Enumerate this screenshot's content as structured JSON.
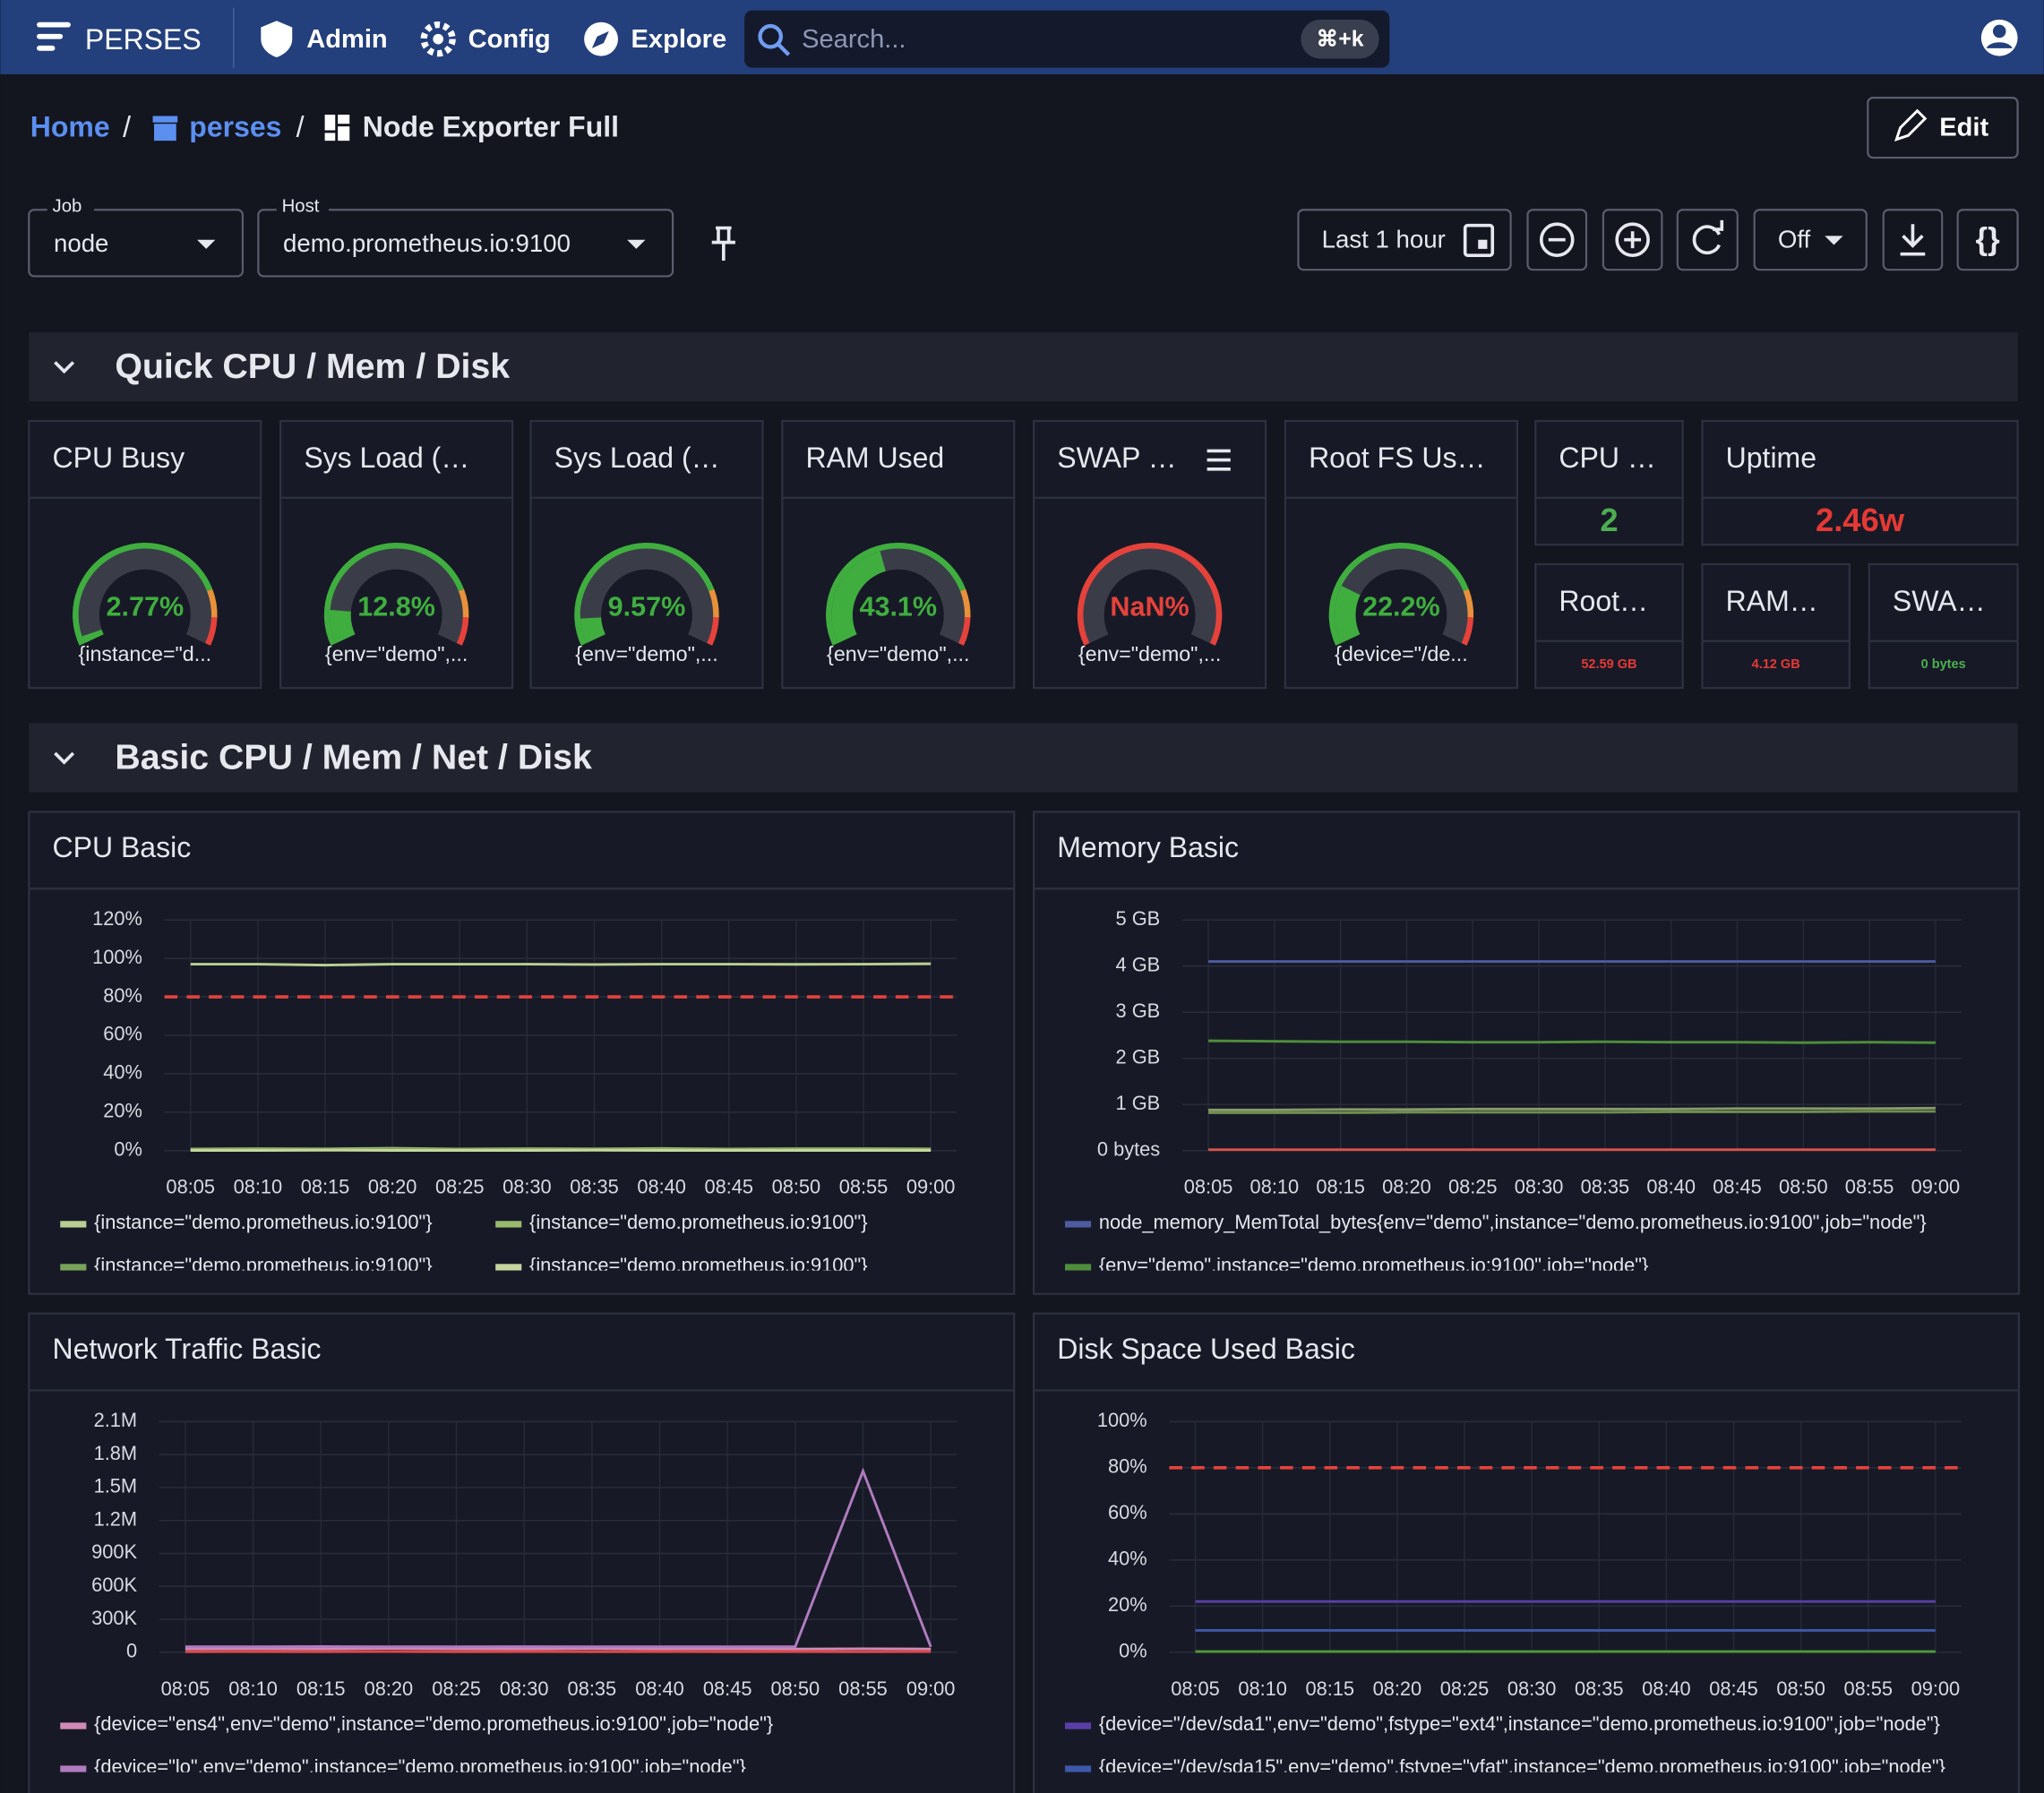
{
  "topbar": {
    "brand": "PERSES",
    "nav": [
      "Admin",
      "Config",
      "Explore"
    ],
    "search": "Search...",
    "shortcut": "⌘+k"
  },
  "breadcrumb": [
    "Home",
    "perses",
    "Node Exporter Full"
  ],
  "edit": "Edit",
  "variables": [
    {
      "label": "Job",
      "value": "node"
    },
    {
      "label": "Host",
      "value": "demo.prometheus.io:9100"
    }
  ],
  "time_range": "Last 1 hour",
  "refresh": "Off",
  "sections": [
    {
      "title": "Quick CPU / Mem / Disk",
      "gauges": [
        {
          "title": "CPU Busy",
          "value": 2.77,
          "value_label": "2.77%",
          "legend": "{instance=\"d...",
          "color": "#3fae3f"
        },
        {
          "title": "Sys Load (…",
          "value": 12.8,
          "value_label": "12.8%",
          "legend": "{env=\"demo\",...",
          "color": "#3fae3f"
        },
        {
          "title": "Sys Load (…",
          "value": 9.57,
          "value_label": "9.57%",
          "legend": "{env=\"demo\",...",
          "color": "#3fae3f"
        },
        {
          "title": "RAM Used",
          "value": 43.1,
          "value_label": "43.1%",
          "legend": "{env=\"demo\",...",
          "color": "#3fae3f"
        },
        {
          "title": "SWAP …",
          "value": null,
          "value_label": "NaN%",
          "legend": "{env=\"demo\",...",
          "color": "#e5423b"
        },
        {
          "title": "Root FS Us…",
          "value": 22.2,
          "value_label": "22.2%",
          "legend": "{device=\"/de...",
          "color": "#3fae3f"
        }
      ],
      "stats": [
        {
          "title": "CPU …",
          "value": "2",
          "color": "#4caf50"
        },
        {
          "title": "Uptime",
          "value": "2.46w",
          "color": "#e53935"
        },
        {
          "title": "Root…",
          "value": "52.59 GB",
          "color": "#e53935"
        },
        {
          "title": "RAM…",
          "value": "4.12 GB",
          "color": "#e53935"
        },
        {
          "title": "SWA…",
          "value": "0 bytes",
          "color": "#4caf50"
        }
      ]
    },
    {
      "title": "Basic CPU / Mem / Net / Disk",
      "charts": [
        {
          "title": "CPU Basic",
          "ylim": [
            0,
            120
          ],
          "yticks": [
            {
              "value": 0,
              "label": "0%"
            },
            {
              "value": 20,
              "label": "20%"
            },
            {
              "value": 40,
              "label": "40%"
            },
            {
              "value": 60,
              "label": "60%"
            },
            {
              "value": 80,
              "label": "80%"
            },
            {
              "value": 100,
              "label": "100%"
            },
            {
              "value": 120,
              "label": "120%"
            }
          ],
          "categories": [
            "08:05",
            "08:10",
            "08:15",
            "08:20",
            "08:25",
            "08:30",
            "08:35",
            "08:40",
            "08:45",
            "08:50",
            "08:55",
            "09:00"
          ],
          "thresholds": [
            80
          ],
          "series": [
            {
              "name": "{instance=\"demo.prometheus.io:9100\"}",
              "color": "#b9cf92",
              "values": [
                97,
                97,
                96.5,
                97,
                97,
                97,
                96.8,
                97,
                97,
                96.9,
                97,
                97.2
              ]
            },
            {
              "name": "{instance=\"demo.prometheus.io:9100\"}",
              "color": "#9ab86e",
              "values": [
                0.8,
                1,
                0.9,
                1.2,
                0.8,
                1,
                0.9,
                1.1,
                0.8,
                1,
                1,
                0.9
              ]
            },
            {
              "name": "{instance=\"demo.prometheus.io:9100\"}",
              "color": "#7aa35a",
              "values": [
                0.3,
                0.4,
                0.3,
                0.5,
                0.3,
                0.4,
                0.3,
                0.4,
                0.3,
                0.4,
                0.4,
                0.3
              ]
            },
            {
              "name": "{instance=\"demo.prometheus.io:9100\"}",
              "color": "#c6d69e",
              "values": [
                0.1,
                0.1,
                0.2,
                0.1,
                0.1,
                0.1,
                0.2,
                0.1,
                0.1,
                0.1,
                0.1,
                0.1
              ]
            }
          ]
        },
        {
          "title": "Memory Basic",
          "ylim": [
            0,
            5
          ],
          "yticks": [
            {
              "value": 0,
              "label": "0 bytes"
            },
            {
              "value": 1,
              "label": "1 GB"
            },
            {
              "value": 2,
              "label": "2 GB"
            },
            {
              "value": 3,
              "label": "3 GB"
            },
            {
              "value": 4,
              "label": "4 GB"
            },
            {
              "value": 5,
              "label": "5 GB"
            }
          ],
          "categories": [
            "08:05",
            "08:10",
            "08:15",
            "08:20",
            "08:25",
            "08:30",
            "08:35",
            "08:40",
            "08:45",
            "08:50",
            "08:55",
            "09:00"
          ],
          "series": [
            {
              "name": "node_memory_MemTotal_bytes{env=\"demo\",instance=\"demo.prometheus.io:9100\",job=\"node\"}",
              "color": "#4e5ba0",
              "values": [
                4.1,
                4.1,
                4.1,
                4.1,
                4.1,
                4.1,
                4.1,
                4.1,
                4.1,
                4.1,
                4.1,
                4.1
              ]
            },
            {
              "name": "{env=\"demo\",instance=\"demo.prometheus.io:9100\",job=\"node\"}",
              "color": "#4f8f3c",
              "values": [
                2.38,
                2.37,
                2.36,
                2.36,
                2.35,
                2.35,
                2.36,
                2.35,
                2.35,
                2.34,
                2.35,
                2.34
              ]
            },
            {
              "color": "#8a9a6a",
              "values": [
                0.88,
                0.88,
                0.89,
                0.89,
                0.9,
                0.9,
                0.9,
                0.9,
                0.91,
                0.91,
                0.91,
                0.92
              ]
            },
            {
              "color": "#6f8f4f",
              "values": [
                0.82,
                0.82,
                0.82,
                0.83,
                0.83,
                0.83,
                0.83,
                0.84,
                0.84,
                0.84,
                0.85,
                0.85
              ]
            },
            {
              "color": "#d9534f",
              "values": [
                0.02,
                0.02,
                0.02,
                0.02,
                0.02,
                0.02,
                0.02,
                0.02,
                0.02,
                0.02,
                0.02,
                0.02
              ]
            }
          ]
        },
        {
          "title": "Network Traffic Basic",
          "ylim": [
            0,
            2100000
          ],
          "yticks": [
            0,
            {
              "value": 300000,
              "label": "300K"
            },
            {
              "value": 600000,
              "label": "600K"
            },
            {
              "value": 900000,
              "label": "900K"
            },
            {
              "value": 1200000,
              "label": "1.2M"
            },
            {
              "value": 1500000,
              "label": "1.5M"
            },
            {
              "value": 1800000,
              "label": "1.8M"
            },
            {
              "value": 2100000,
              "label": "2.1M"
            }
          ],
          "categories": [
            "08:05",
            "08:10",
            "08:15",
            "08:20",
            "08:25",
            "08:30",
            "08:35",
            "08:40",
            "08:45",
            "08:50",
            "08:55",
            "09:00"
          ],
          "series": [
            {
              "name": "{device=\"ens4\",env=\"demo\",instance=\"demo.prometheus.io:9100\",job=\"node\"}",
              "color": "#d08ab5",
              "values": [
                30000,
                32000,
                30000,
                35000,
                31000,
                30000,
                33000,
                30000,
                31000,
                30000,
                32000,
                30000
              ]
            },
            {
              "name": "{device=\"lo\",env=\"demo\",instance=\"demo.prometheus.io:9100\",job=\"node\"}",
              "color": "#b07cc0",
              "values": [
                50000,
                50000,
                52000,
                50000,
                50000,
                51000,
                50000,
                50000,
                50000,
                50000,
                1650000,
                50000
              ]
            },
            {
              "color": "#e04848",
              "values": [
                5000,
                6000,
                5000,
                7000,
                5000,
                6000,
                5000,
                6000,
                5000,
                6000,
                5000,
                6000
              ]
            }
          ]
        },
        {
          "title": "Disk Space Used Basic",
          "ylim": [
            0,
            100
          ],
          "yticks": [
            {
              "value": 0,
              "label": "0%"
            },
            {
              "value": 20,
              "label": "20%"
            },
            {
              "value": 40,
              "label": "40%"
            },
            {
              "value": 60,
              "label": "60%"
            },
            {
              "value": 80,
              "label": "80%"
            },
            {
              "value": 100,
              "label": "100%"
            }
          ],
          "categories": [
            "08:05",
            "08:10",
            "08:15",
            "08:20",
            "08:25",
            "08:30",
            "08:35",
            "08:40",
            "08:45",
            "08:50",
            "08:55",
            "09:00"
          ],
          "thresholds": [
            80
          ],
          "series": [
            {
              "name": "{device=\"/dev/sda1\",env=\"demo\",fstype=\"ext4\",instance=\"demo.prometheus.io:9100\",job=\"node\"}",
              "color": "#5a3ea8",
              "values": [
                22,
                22,
                22,
                22,
                22,
                22,
                22,
                22,
                22,
                22,
                22,
                22
              ]
            },
            {
              "name": "{device=\"/dev/sda15\",env=\"demo\",fstype=\"vfat\",instance=\"demo.prometheus.io:9100\",job=\"node\"}",
              "color": "#3d58a8",
              "values": [
                9.5,
                9.5,
                9.5,
                9.5,
                9.5,
                9.5,
                9.5,
                9.5,
                9.5,
                9.5,
                9.5,
                9.5
              ]
            },
            {
              "color": "#4f9a3c",
              "values": [
                0.3,
                0.3,
                0.3,
                0.3,
                0.3,
                0.3,
                0.3,
                0.3,
                0.3,
                0.3,
                0.3,
                0.3
              ]
            }
          ]
        }
      ]
    }
  ]
}
